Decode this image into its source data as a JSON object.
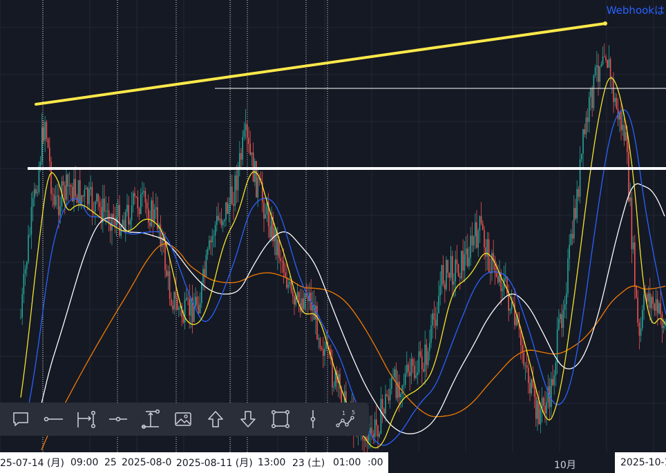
{
  "header": {
    "webhook_link": "Webhookは"
  },
  "time_axis": {
    "labels": [
      "25-07-14 (月)",
      "09:00",
      "25",
      "2025-08-0",
      "2025-08-11 (月)",
      "13:00",
      "23 (土)",
      "01:00",
      ":00"
    ],
    "month_label": "10月",
    "right_label": "2025-10-1"
  },
  "toolbar": {
    "tools": [
      {
        "name": "text-note",
        "icon": "speech-bubble-icon"
      },
      {
        "name": "horizontal-ray",
        "icon": "horizontal-ray-icon"
      },
      {
        "name": "date-range",
        "icon": "date-range-icon"
      },
      {
        "name": "horizontal-line",
        "icon": "horizontal-line-icon"
      },
      {
        "name": "price-range",
        "icon": "price-range-icon"
      },
      {
        "name": "image",
        "icon": "image-icon"
      },
      {
        "name": "arrow-up",
        "icon": "arrow-up-icon"
      },
      {
        "name": "arrow-down",
        "icon": "arrow-down-icon"
      },
      {
        "name": "rectangle",
        "icon": "rectangle-icon"
      },
      {
        "name": "vertical-line",
        "icon": "vertical-line-icon"
      },
      {
        "name": "path",
        "icon": "path-icon"
      }
    ],
    "path_badge_1": "1",
    "path_badge_5": "5"
  },
  "colors": {
    "background": "#151924",
    "grid": "#232734",
    "up_candle": "#26a69a",
    "down_candle": "#ef5350",
    "ma_yellow": "#f5e72a",
    "ma_blue": "#2962ff",
    "ma_white": "#ffffff",
    "ma_orange": "#f57c00",
    "trendline": "#ffe94a"
  }
}
